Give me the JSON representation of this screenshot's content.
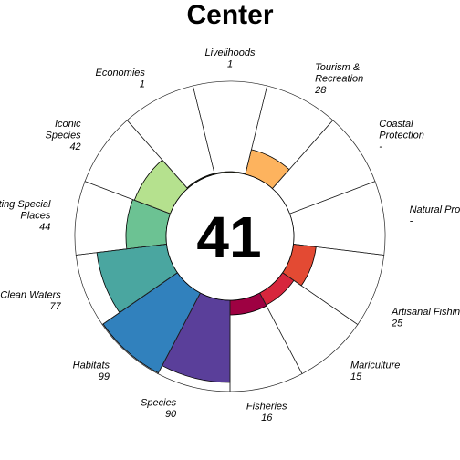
{
  "chart_data": {
    "type": "flower-plot",
    "title": "Center",
    "center_score": "41",
    "ylim": [
      0,
      100
    ],
    "sectors": [
      {
        "name": "Species",
        "score_label": "90",
        "value": 90,
        "color": "#5a3f9a"
      },
      {
        "name": "Habitats",
        "score_label": "99",
        "value": 99,
        "color": "#3181bd"
      },
      {
        "name": "Clean Waters",
        "score_label": "77",
        "value": 77,
        "color": "#4aa6a0"
      },
      {
        "name": "Lasting Special Places",
        "score_label": "44",
        "value": 44,
        "color": "#6cc293"
      },
      {
        "name": "Iconic Species",
        "score_label": "42",
        "value": 42,
        "color": "#b5e18e"
      },
      {
        "name": "Economies",
        "score_label": "1",
        "value": 1,
        "color": "#d5ee9c"
      },
      {
        "name": "Livelihoods",
        "score_label": "1",
        "value": 1,
        "color": "#f3faa9"
      },
      {
        "name": "Tourism & Recreation",
        "score_label": "28",
        "value": 28,
        "color": "#fdb35e"
      },
      {
        "name": "Coastal Protection",
        "score_label": "-",
        "value": null,
        "color": "#fee08b"
      },
      {
        "name": "Natural Products",
        "score_label": "-",
        "value": null,
        "color": "#fdae61"
      },
      {
        "name": "Artisanal Fishing Opportunities",
        "score_label": "25",
        "value": 25,
        "color": "#e34a33"
      },
      {
        "name": "Mariculture",
        "score_label": "15",
        "value": 15,
        "color": "#d7263d"
      },
      {
        "name": "Fisheries",
        "score_label": "16",
        "value": 16,
        "color": "#9e0142"
      }
    ]
  }
}
